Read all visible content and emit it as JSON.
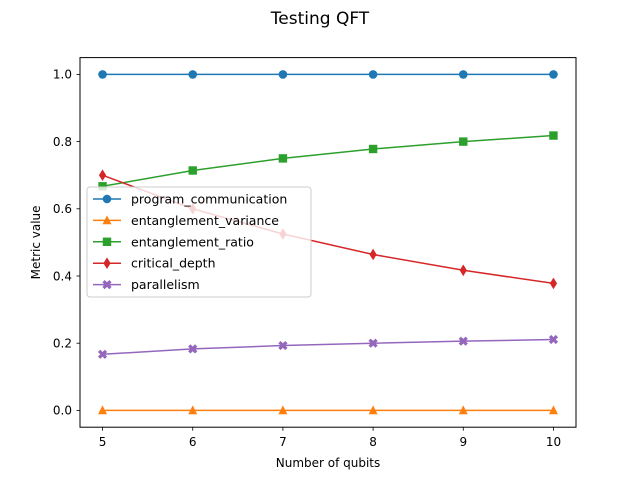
{
  "chart_data": {
    "type": "line",
    "title": "Testing QFT",
    "xlabel": "Number of qubits",
    "ylabel": "Metric value",
    "x": [
      5,
      6,
      7,
      8,
      9,
      10
    ],
    "xlim": [
      4.75,
      10.25
    ],
    "ylim": [
      -0.05,
      1.05
    ],
    "xticks": [
      "5",
      "6",
      "7",
      "8",
      "9",
      "10"
    ],
    "yticks": [
      "0.0",
      "0.2",
      "0.4",
      "0.6",
      "0.8",
      "1.0"
    ],
    "grid": false,
    "legend_position": "center-left",
    "series": [
      {
        "name": "program_communication",
        "color": "#1f77b4",
        "marker": "circle",
        "values": [
          1.0,
          1.0,
          1.0,
          1.0,
          1.0,
          1.0
        ]
      },
      {
        "name": "entanglement_variance",
        "color": "#ff7f0e",
        "marker": "triangle",
        "values": [
          0.0,
          0.0,
          0.0,
          0.0,
          0.0,
          0.0
        ]
      },
      {
        "name": "entanglement_ratio",
        "color": "#2ca02c",
        "marker": "square",
        "values": [
          0.667,
          0.714,
          0.75,
          0.778,
          0.8,
          0.818
        ]
      },
      {
        "name": "critical_depth",
        "color": "#d62728",
        "marker": "diamond",
        "values": [
          0.7,
          0.6,
          0.525,
          0.464,
          0.417,
          0.378
        ]
      },
      {
        "name": "parallelism",
        "color": "#9467bd",
        "marker": "x",
        "values": [
          0.167,
          0.183,
          0.193,
          0.2,
          0.206,
          0.211
        ]
      }
    ]
  }
}
